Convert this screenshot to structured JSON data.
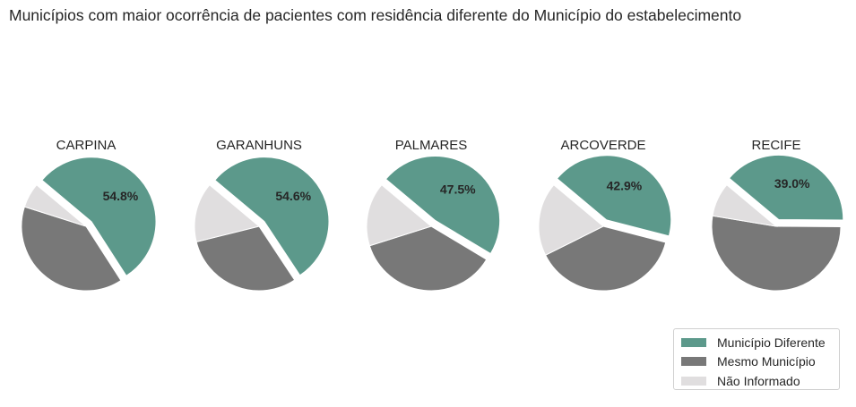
{
  "title": "Municípios com maior ocorrência de pacientes com residência diferente do Município do estabelecimento",
  "legend": {
    "items": [
      {
        "label": "Município Diferente",
        "color": "#5c998b"
      },
      {
        "label": "Mesmo Município",
        "color": "#787878"
      },
      {
        "label": "Não Informado",
        "color": "#e0dedf"
      }
    ]
  },
  "chart_data": [
    {
      "type": "pie",
      "title": "CARPINA",
      "categories": [
        "Município Diferente",
        "Mesmo Município",
        "Não Informado"
      ],
      "values": [
        54.8,
        39.0,
        6.2
      ],
      "value_label": "54.8%",
      "exploded": "Município Diferente"
    },
    {
      "type": "pie",
      "title": "GARANHUNS",
      "categories": [
        "Município Diferente",
        "Mesmo Município",
        "Não Informado"
      ],
      "values": [
        54.6,
        30.4,
        15.0
      ],
      "value_label": "54.6%",
      "exploded": "Município Diferente"
    },
    {
      "type": "pie",
      "title": "PALMARES",
      "categories": [
        "Município Diferente",
        "Mesmo Município",
        "Não Informado"
      ],
      "values": [
        47.5,
        36.5,
        16.0
      ],
      "value_label": "47.5%",
      "exploded": "Município Diferente"
    },
    {
      "type": "pie",
      "title": "ARCOVERDE",
      "categories": [
        "Município Diferente",
        "Mesmo Município",
        "Não Informado"
      ],
      "values": [
        42.9,
        38.6,
        18.5
      ],
      "value_label": "42.9%",
      "exploded": "Município Diferente"
    },
    {
      "type": "pie",
      "title": "RECIFE",
      "categories": [
        "Município Diferente",
        "Mesmo Município",
        "Não Informado"
      ],
      "values": [
        39.0,
        52.5,
        8.5
      ],
      "value_label": "39.0%",
      "exploded": "Município Diferente"
    }
  ]
}
